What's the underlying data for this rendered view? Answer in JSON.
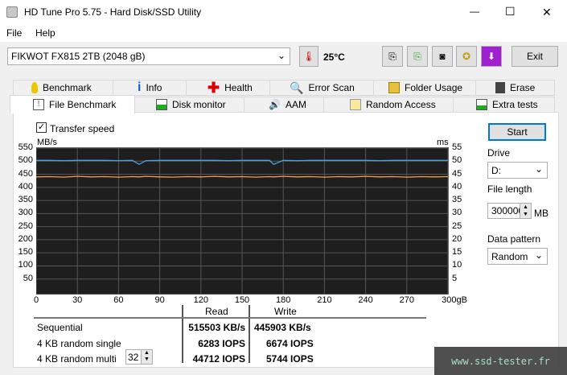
{
  "window": {
    "title": "HD Tune Pro 5.75 - Hard Disk/SSD Utility",
    "minimize": "—",
    "maximize": "☐",
    "close": "✕"
  },
  "menu": [
    "File",
    "Help"
  ],
  "toolbar": {
    "drive": "FIKWOT FX815 2TB (2048 gB)",
    "temperature": "25°C",
    "exit": "Exit"
  },
  "tabs_row1": [
    "Benchmark",
    "Info",
    "Health",
    "Error Scan",
    "Folder Usage",
    "Erase"
  ],
  "tabs_row2": [
    "File Benchmark",
    "Disk monitor",
    "AAM",
    "Random Access",
    "Extra tests"
  ],
  "options": {
    "transfer_speed_label": "Transfer speed",
    "transfer_speed_checked": true,
    "start": "Start",
    "drive_label": "Drive",
    "drive_value": "D:",
    "file_length_label": "File length",
    "file_length_value": "300000",
    "file_length_unit": "MB",
    "data_pattern_label": "Data pattern",
    "data_pattern_value": "Random"
  },
  "chart_data": {
    "type": "line",
    "ylabel_left": "MB/s",
    "ylabel_right": "ms",
    "xlim": [
      0,
      300
    ],
    "ylim": [
      0,
      550
    ],
    "yticks": [
      50,
      100,
      150,
      200,
      250,
      300,
      350,
      400,
      450,
      500,
      550
    ],
    "yticks_right": [
      5,
      10,
      15,
      20,
      25,
      30,
      35,
      40,
      45,
      50,
      55
    ],
    "xticks": [
      "0",
      "30",
      "60",
      "90",
      "120",
      "150",
      "180",
      "210",
      "240",
      "270",
      "300gB"
    ],
    "grid": true,
    "x": [
      0,
      10,
      20,
      30,
      40,
      50,
      60,
      70,
      75,
      80,
      90,
      100,
      110,
      120,
      130,
      140,
      150,
      160,
      170,
      173,
      180,
      190,
      200,
      210,
      220,
      230,
      240,
      250,
      260,
      270,
      280,
      290,
      300
    ],
    "series": [
      {
        "color": "#4aa3d8",
        "values": [
          503,
          503,
          502,
          503,
          503,
          503,
          502,
          503,
          488,
          502,
          503,
          503,
          503,
          503,
          503,
          502,
          503,
          503,
          503,
          488,
          503,
          502,
          503,
          503,
          503,
          503,
          503,
          502,
          503,
          503,
          503,
          503,
          503
        ]
      },
      {
        "color": "#f0a050",
        "values": [
          440,
          441,
          439,
          442,
          440,
          441,
          439,
          441,
          440,
          442,
          440,
          439,
          441,
          440,
          442,
          440,
          441,
          439,
          441,
          440,
          442,
          440,
          441,
          439,
          441,
          440,
          442,
          440,
          441,
          439,
          441,
          440,
          441
        ]
      }
    ]
  },
  "results": {
    "col_read": "Read",
    "col_write": "Write",
    "rows": [
      {
        "label": "Sequential",
        "read": "515503 KB/s",
        "write": "445903 KB/s"
      },
      {
        "label": "4 KB random single",
        "read": "6283 IOPS",
        "write": "6674 IOPS"
      },
      {
        "label": "4 KB random multi",
        "read": "44712 IOPS",
        "write": "5744 IOPS"
      }
    ],
    "queue_depth": "32"
  },
  "watermark": "www.ssd-tester.fr"
}
